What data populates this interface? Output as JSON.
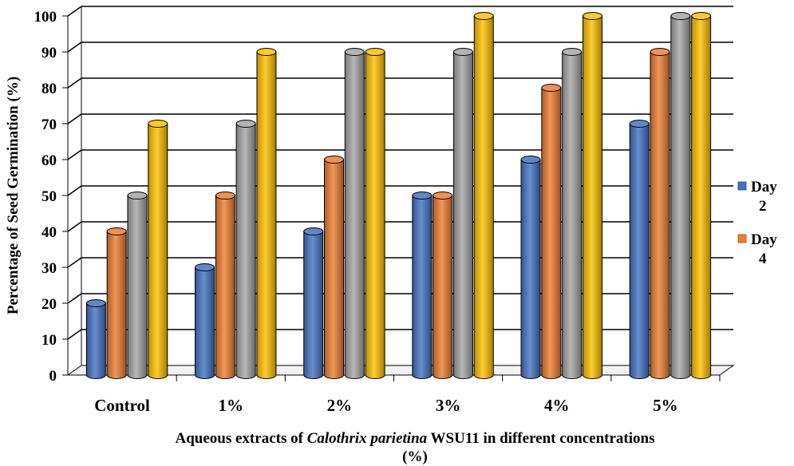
{
  "chart_data": {
    "type": "bar",
    "title": "",
    "xlabel_line1_pre": "Aqueous extracts of ",
    "xlabel_line1_italic": "Calothrix parietina",
    "xlabel_line1_post": " WSU11 in different concentrations",
    "xlabel_line2": "(%)",
    "ylabel": "Percentage of Seed Germination (%)",
    "ylim": [
      0,
      100
    ],
    "yticks": [
      "0",
      "10",
      "20",
      "30",
      "40",
      "50",
      "60",
      "70",
      "80",
      "90",
      "100"
    ],
    "grid": true,
    "legend_position": "right",
    "categories": [
      "Control",
      "1%",
      "2%",
      "3%",
      "4%",
      "5%"
    ],
    "series": [
      {
        "name": "Day 2",
        "legend_lines": [
          "Day",
          "2"
        ],
        "color": "#4472C4",
        "values": [
          20,
          30,
          40,
          50,
          60,
          70
        ]
      },
      {
        "name": "Day 4",
        "legend_lines": [
          "Day",
          "4"
        ],
        "color": "#ED7D31",
        "values": [
          40,
          50,
          60,
          50,
          80,
          90
        ]
      },
      {
        "color": "#A5A5A5",
        "values": [
          50,
          70,
          90,
          90,
          90,
          100
        ]
      },
      {
        "color": "#FFC000",
        "values": [
          70,
          90,
          90,
          100,
          100,
          100
        ]
      }
    ]
  }
}
